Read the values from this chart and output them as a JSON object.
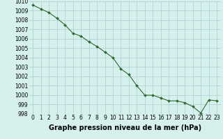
{
  "x": [
    0,
    1,
    2,
    3,
    4,
    5,
    6,
    7,
    8,
    9,
    10,
    11,
    12,
    13,
    14,
    15,
    16,
    17,
    18,
    19,
    20,
    21,
    22,
    23
  ],
  "y": [
    1009.6,
    1009.2,
    1008.8,
    1008.2,
    1007.5,
    1006.6,
    1006.3,
    1005.7,
    1005.2,
    1004.6,
    1004.0,
    1002.8,
    1002.2,
    1001.0,
    1000.0,
    1000.0,
    999.7,
    999.4,
    999.4,
    999.2,
    998.8,
    998.1,
    999.5,
    999.4
  ],
  "line_color": "#2d6a2d",
  "marker": "D",
  "marker_size": 2.0,
  "bg_color": "#d6f0ee",
  "grid_color": "#aacccc",
  "xlabel": "Graphe pression niveau de la mer (hPa)",
  "ylabel": "",
  "ylim": [
    998,
    1010
  ],
  "xlim": [
    -0.5,
    23.5
  ],
  "yticks": [
    998,
    999,
    1000,
    1001,
    1002,
    1003,
    1004,
    1005,
    1006,
    1007,
    1008,
    1009,
    1010
  ],
  "xticks": [
    0,
    1,
    2,
    3,
    4,
    5,
    6,
    7,
    8,
    9,
    10,
    11,
    12,
    13,
    14,
    15,
    16,
    17,
    18,
    19,
    20,
    21,
    22,
    23
  ],
  "tick_fontsize": 5.5,
  "xlabel_fontsize": 7,
  "xlabel_fontweight": "bold",
  "line_width": 0.8
}
